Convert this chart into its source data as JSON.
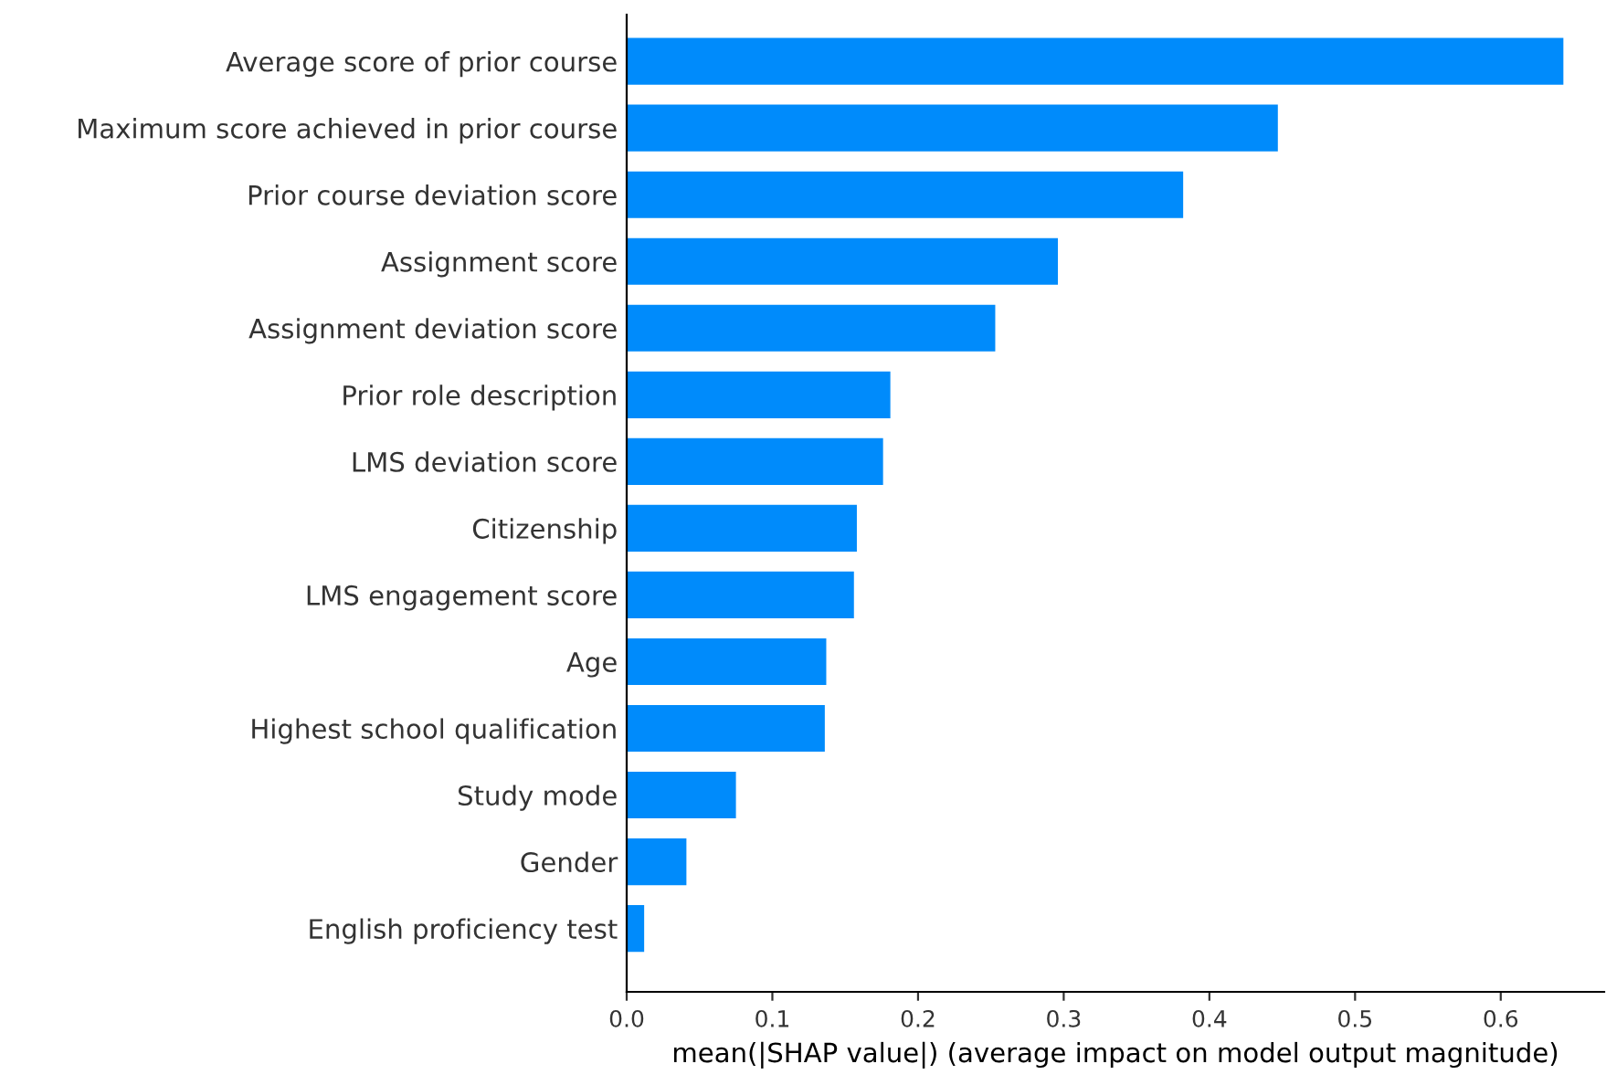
{
  "chart_data": {
    "type": "bar",
    "orientation": "horizontal",
    "xlabel": "mean(|SHAP value|) (average impact on model output magnitude)",
    "categories": [
      "Average score of prior course",
      "Maximum score achieved in prior course",
      "Prior course deviation score",
      "Assignment score",
      "Assignment deviation score",
      "Prior role description",
      "LMS deviation score",
      "Citizenship",
      "LMS engagement score",
      "Age",
      "Highest school qualification",
      "Study mode",
      "Gender",
      "English proficiency test"
    ],
    "values": [
      0.643,
      0.447,
      0.382,
      0.296,
      0.253,
      0.181,
      0.176,
      0.158,
      0.156,
      0.137,
      0.136,
      0.075,
      0.041,
      0.012
    ],
    "color": "#008bfb",
    "xlim": [
      0,
      0.671
    ],
    "xticks": [
      {
        "value": 0,
        "label": "0.0"
      },
      0.1,
      0.2,
      0.3,
      0.4,
      0.5,
      0.6
    ],
    "grid": false,
    "legend": false
  }
}
